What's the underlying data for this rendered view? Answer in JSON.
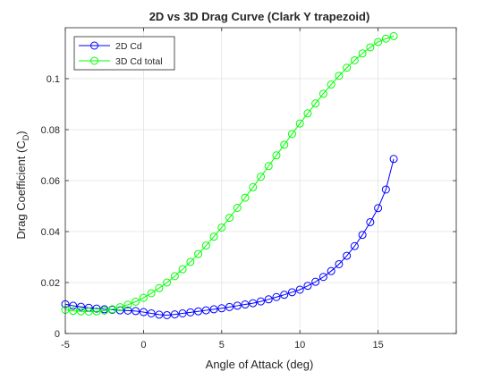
{
  "chart_data": {
    "type": "line",
    "title": "2D vs 3D Drag Curve (Clark Y trapezoid)",
    "xlabel": "Angle of Attack (deg)",
    "ylabel_main": "Drag Coefficient (C",
    "ylabel_sub": "D",
    "ylabel_close": ")",
    "xlim": [
      -5,
      20
    ],
    "ylim": [
      0,
      0.12
    ],
    "xticks": [
      -5,
      0,
      5,
      10,
      15
    ],
    "yticks": [
      0,
      0.02,
      0.04,
      0.06,
      0.08,
      0.1
    ],
    "xtick_labels": [
      "-5",
      "0",
      "5",
      "10",
      "15"
    ],
    "ytick_labels": [
      "0",
      "0.02",
      "0.04",
      "0.06",
      "0.08",
      "0.1"
    ],
    "grid": true,
    "legend_location": "top-left",
    "x": [
      -5,
      -4.5,
      -4,
      -3.5,
      -3,
      -2.5,
      -2,
      -1.5,
      -1,
      -0.5,
      0,
      0.5,
      1,
      1.5,
      2,
      2.5,
      3,
      3.5,
      4,
      4.5,
      5,
      5.5,
      6,
      6.5,
      7,
      7.5,
      8,
      8.5,
      9,
      9.5,
      10,
      10.5,
      11,
      11.5,
      12,
      12.5,
      13,
      13.5,
      14,
      14.5,
      15,
      15.5,
      16
    ],
    "series": [
      {
        "name": "2D Cd",
        "color": "#0000ff",
        "values": [
          0.0115,
          0.0109,
          0.0105,
          0.0101,
          0.0098,
          0.0095,
          0.0093,
          0.0091,
          0.009,
          0.0088,
          0.0084,
          0.0079,
          0.0074,
          0.0072,
          0.0075,
          0.0079,
          0.0083,
          0.0087,
          0.0091,
          0.0095,
          0.0099,
          0.0104,
          0.0109,
          0.0114,
          0.0119,
          0.0126,
          0.0134,
          0.0143,
          0.0152,
          0.0162,
          0.0172,
          0.0187,
          0.0203,
          0.0222,
          0.0245,
          0.0272,
          0.0305,
          0.0343,
          0.0387,
          0.0437,
          0.0492,
          0.0565,
          0.0685
        ]
      },
      {
        "name": "3D Cd total",
        "color": "#00ff00",
        "values": [
          0.0093,
          0.0089,
          0.0087,
          0.0086,
          0.0087,
          0.009,
          0.0095,
          0.0103,
          0.0113,
          0.0125,
          0.014,
          0.0158,
          0.0178,
          0.02,
          0.0225,
          0.0252,
          0.0281,
          0.0312,
          0.0345,
          0.038,
          0.0416,
          0.0454,
          0.0493,
          0.0533,
          0.0574,
          0.0615,
          0.0657,
          0.0699,
          0.0741,
          0.0783,
          0.0824,
          0.0864,
          0.0903,
          0.0941,
          0.0977,
          0.1011,
          0.1043,
          0.1072,
          0.1099,
          0.1123,
          0.1144,
          0.1157,
          0.1167
        ]
      }
    ]
  }
}
